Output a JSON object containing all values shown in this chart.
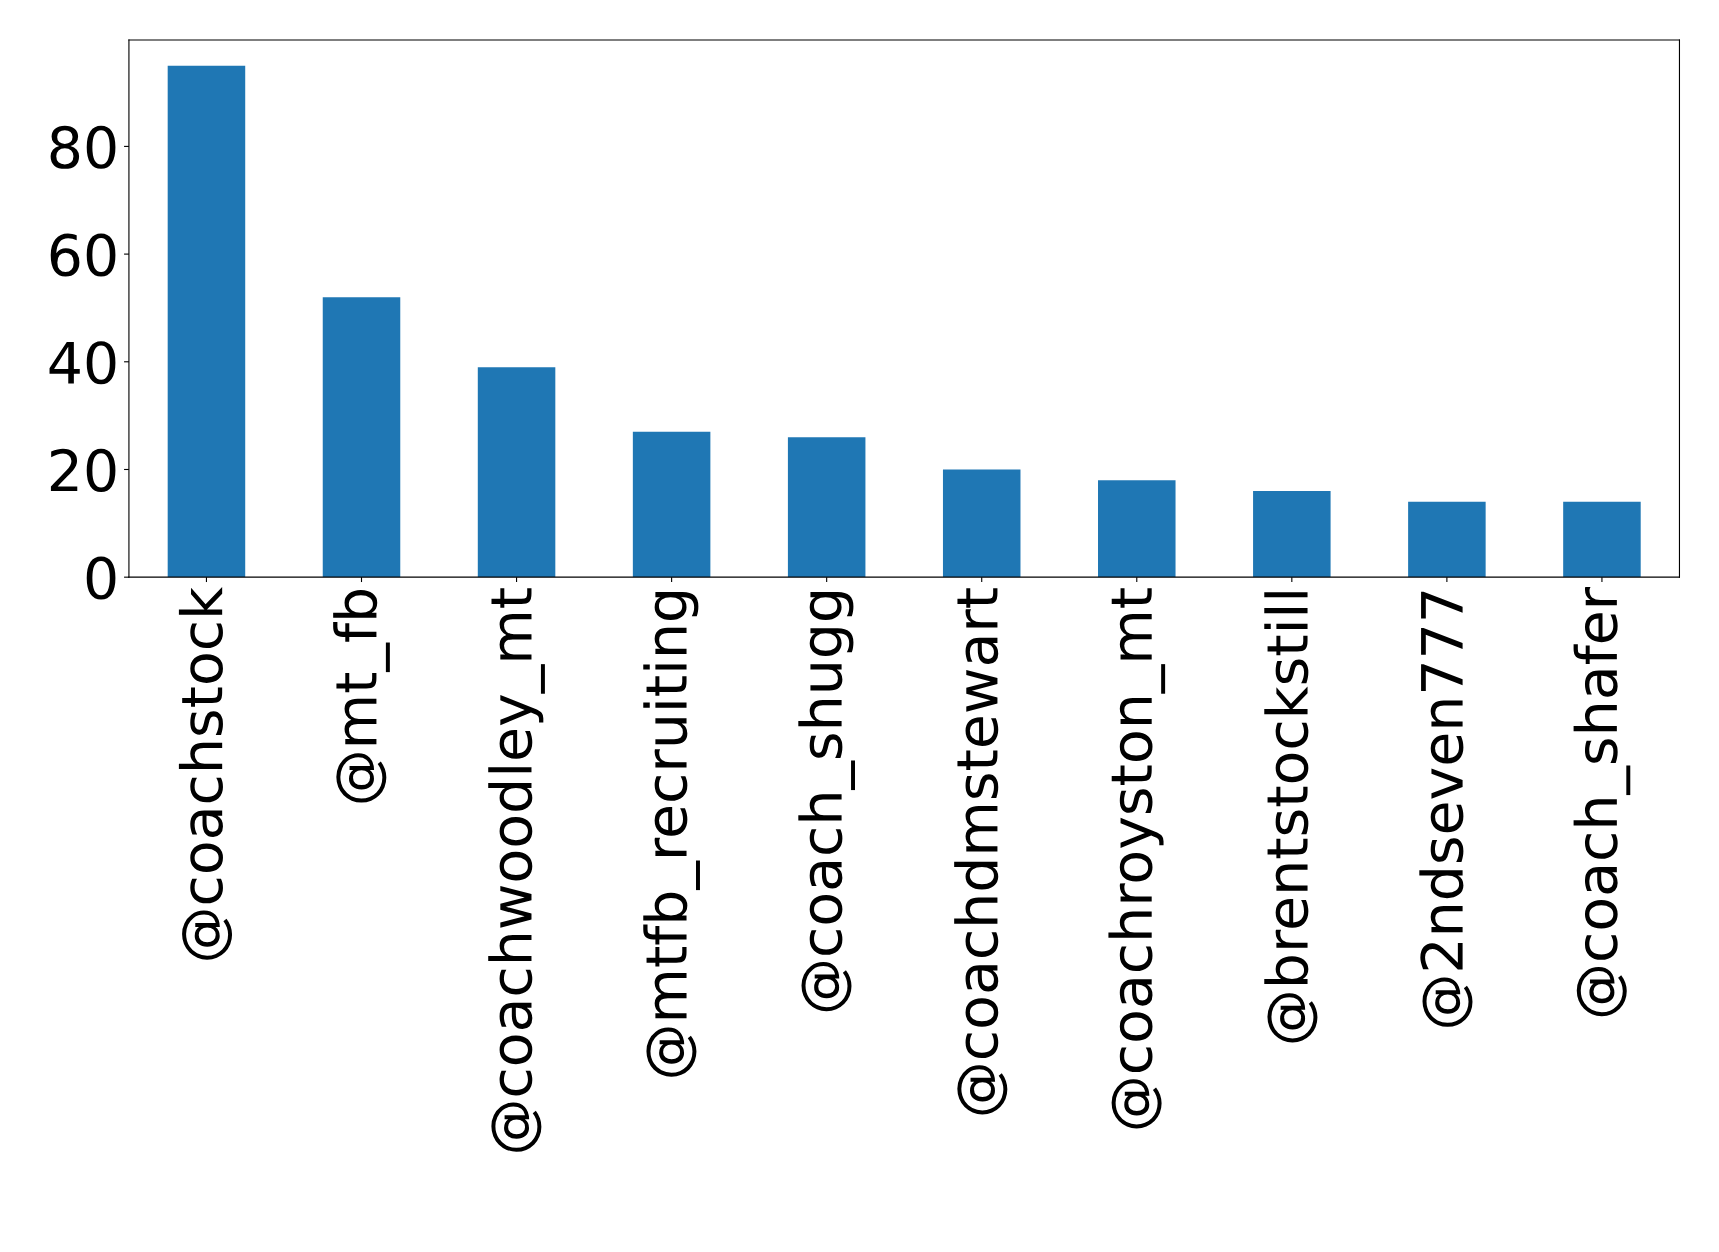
{
  "chart_data": {
    "type": "bar",
    "categories": [
      "@coachstock",
      "@mt_fb",
      "@coachwoodley_mt",
      "@mtfb_recruiting",
      "@coach_shugg",
      "@coachdmstewart",
      "@coachroyston_mt",
      "@brentstockstill",
      "@2ndseven777",
      "@coach_shafer"
    ],
    "values": [
      95,
      52,
      39,
      27,
      26,
      20,
      18,
      16,
      14,
      14
    ],
    "color": "#1f77b4",
    "ylim": [
      0,
      99.75
    ],
    "yticks": [
      0,
      20,
      40,
      60,
      80
    ],
    "grid": false
  }
}
